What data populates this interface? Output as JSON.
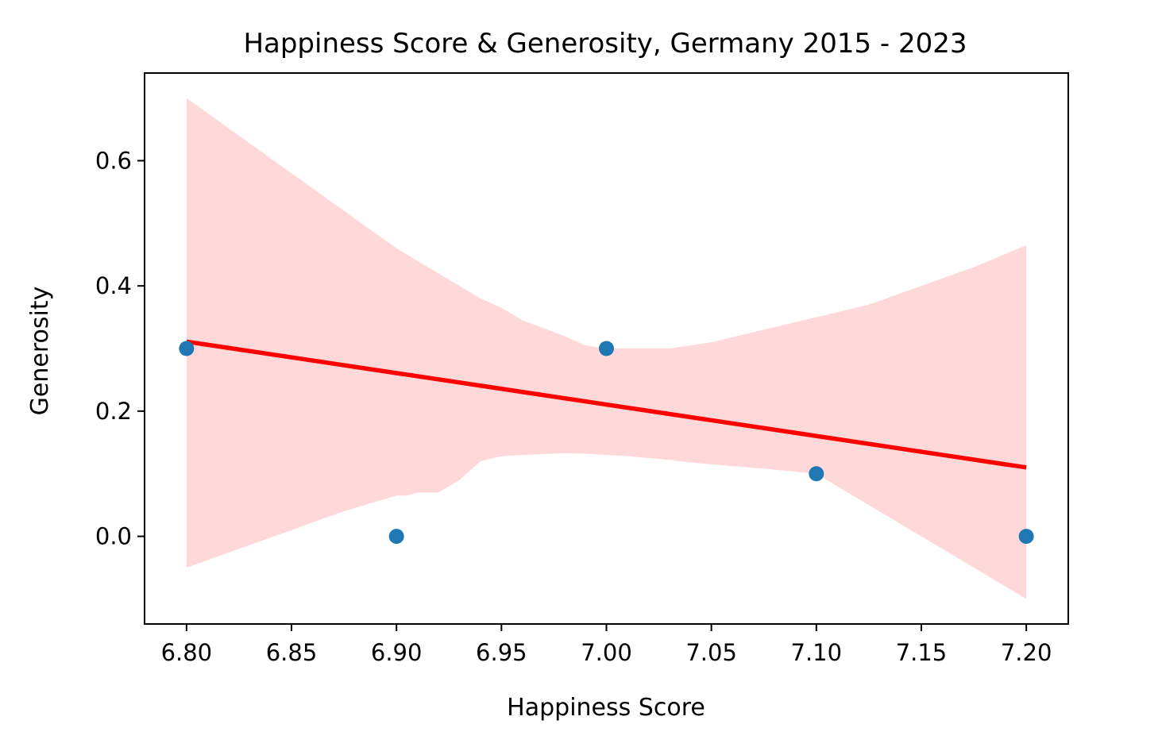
{
  "chart_data": {
    "type": "scatter",
    "title": "Happiness Score & Generosity, Germany 2015 - 2023",
    "xlabel": "Happiness Score",
    "ylabel": "Generosity",
    "xlim": [
      6.78,
      7.22
    ],
    "ylim": [
      -0.14,
      0.74
    ],
    "x_ticks": [
      "6.80",
      "6.85",
      "6.90",
      "6.95",
      "7.00",
      "7.05",
      "7.10",
      "7.15",
      "7.20"
    ],
    "y_ticks": [
      "0.0",
      "0.2",
      "0.4",
      "0.6"
    ],
    "grid": false,
    "points": [
      {
        "x": 6.8,
        "y": 0.3
      },
      {
        "x": 6.9,
        "y": 0.0
      },
      {
        "x": 7.0,
        "y": 0.3
      },
      {
        "x": 7.1,
        "y": 0.1
      },
      {
        "x": 7.2,
        "y": 0.0
      }
    ],
    "regression_line": {
      "x": [
        6.8,
        7.2
      ],
      "y": [
        0.311,
        0.11
      ]
    },
    "confidence_band": {
      "x": [
        6.8,
        6.825,
        6.85,
        6.875,
        6.9,
        6.905,
        6.91,
        6.92,
        6.93,
        6.94,
        6.95,
        6.96,
        6.98,
        6.99,
        7.0,
        7.01,
        7.02,
        7.03,
        7.04,
        7.05,
        7.075,
        7.1,
        7.125,
        7.15,
        7.175,
        7.2
      ],
      "upper": [
        0.7,
        0.64,
        0.58,
        0.52,
        0.46,
        0.45,
        0.44,
        0.42,
        0.4,
        0.38,
        0.365,
        0.345,
        0.32,
        0.305,
        0.3,
        0.3,
        0.3,
        0.3,
        0.305,
        0.31,
        0.33,
        0.35,
        0.37,
        0.4,
        0.43,
        0.465
      ],
      "lower": [
        -0.05,
        -0.02,
        0.01,
        0.04,
        0.065,
        0.065,
        0.07,
        0.07,
        0.09,
        0.12,
        0.128,
        0.13,
        0.133,
        0.132,
        0.13,
        0.128,
        0.125,
        0.122,
        0.118,
        0.115,
        0.108,
        0.1,
        0.05,
        0.0,
        -0.05,
        -0.1
      ]
    },
    "colors": {
      "points": "#1f77b4",
      "regression_line": "#ff0000",
      "confidence_band": "#ffd8d9"
    }
  }
}
